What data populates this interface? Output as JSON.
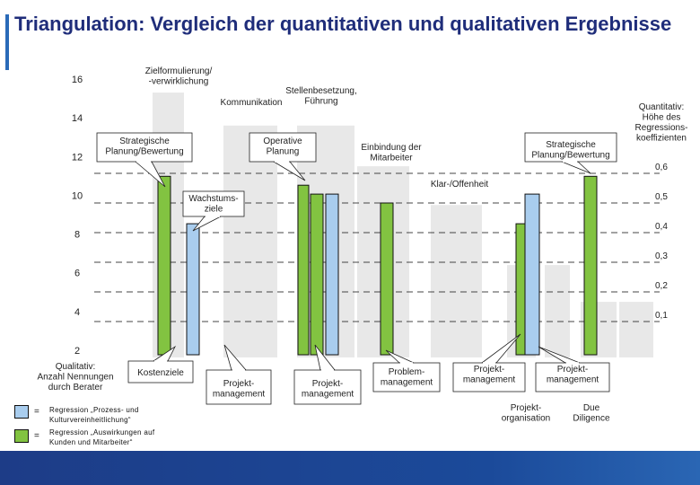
{
  "title": "Triangulation: Vergleich der quantitativen und qualitativen Ergebnisse",
  "colors": {
    "green": "#82c341",
    "blue": "#a9cdee",
    "background_column": "#e8e8e8",
    "title": "#1f2d7a",
    "footer": "#1d3c87"
  },
  "chart_data": {
    "type": "bar",
    "left_axis": {
      "label": "Qualitativ:\nAnzahl Nennungen\ndurch Berater",
      "ticks": [
        "16",
        "14",
        "12",
        "10",
        "8",
        "6",
        "4",
        "2"
      ],
      "range": [
        2,
        16
      ]
    },
    "right_axis": {
      "label": "Quantitativ:\nHöhe des\nRegressions-\nkoeffizienten",
      "ticks": [
        "0,6",
        "0,5",
        "0,4",
        "0,3",
        "0,2",
        "0,1"
      ],
      "range": [
        0,
        0.7
      ]
    },
    "grid": "dashed horizontal",
    "legend": [
      {
        "color": "blue",
        "eq": "=",
        "text": "Regression „Prozess- und\nKulturvereinheitlichung“"
      },
      {
        "color": "green",
        "eq": "=",
        "text": "Regression „Auswirkungen auf\nKunden und Mitarbeiter“"
      }
    ],
    "qualitative_columns": [
      {
        "label": "Zielformulierung/\n-verwirklichung",
        "value": 15.3
      },
      {
        "label": "Kommunikation",
        "value": 13.6
      },
      {
        "label": "Stellenbesetzung,\nFührung",
        "value": 13.6
      },
      {
        "label": "Einbindung der\nMitarbeiter",
        "value": 11.5
      },
      {
        "label": "Klar-/Offenheit",
        "value": 9.5
      },
      {
        "label": "",
        "value": 6.4
      },
      {
        "label": "",
        "value": 6.4
      },
      {
        "label": "",
        "value": 4.5
      },
      {
        "label": "",
        "value": 4.5
      }
    ],
    "quantitative_bars": [
      {
        "series": "green",
        "value": 0.59,
        "label": "Strategische\nPlanung/Bewertung"
      },
      {
        "series": "blue",
        "value": 0.43,
        "label": "Wachstums-\nziele"
      },
      {
        "series": "green",
        "value": 0.56,
        "label": "Operative\nPlanung"
      },
      {
        "series": "green",
        "value": 0.53,
        "label": ""
      },
      {
        "series": "blue",
        "value": 0.53,
        "label": ""
      },
      {
        "series": "green",
        "value": 0.5,
        "label": ""
      },
      {
        "series": "green",
        "value": 0.43,
        "label": ""
      },
      {
        "series": "blue",
        "value": 0.53,
        "label": ""
      },
      {
        "series": "green",
        "value": 0.59,
        "label": "Strategische\nPlanung/Bewertung"
      }
    ],
    "callouts": [
      {
        "text": "Kostenziele"
      },
      {
        "text": "Projekt-\nmanagement"
      },
      {
        "text": "Projekt-\nmanagement"
      },
      {
        "text": "Problem-\nmanagement"
      },
      {
        "text": "Projekt-\nmanagement"
      },
      {
        "text": "Projekt-\nmanagement"
      }
    ],
    "bottom_labels": [
      {
        "text": "Projekt-\norganisation"
      },
      {
        "text": "Due\nDiligence"
      }
    ]
  }
}
